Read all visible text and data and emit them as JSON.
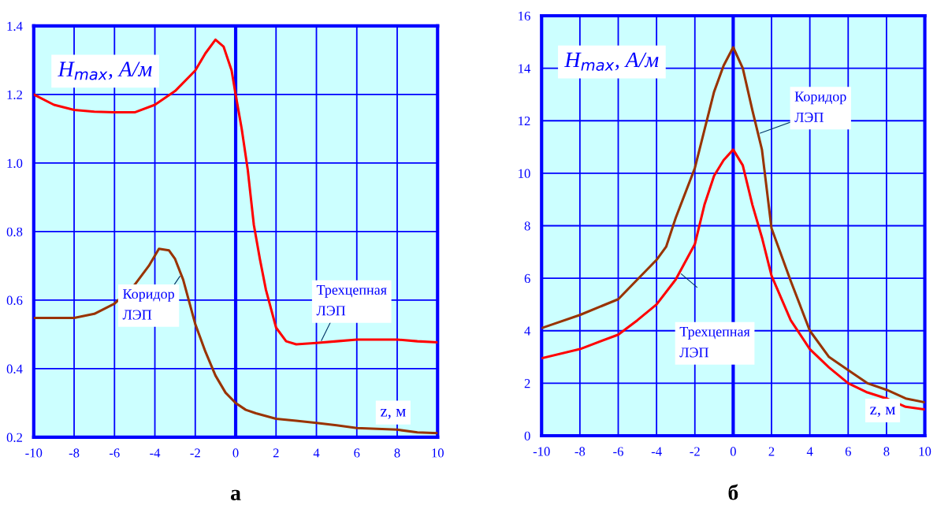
{
  "chart_data": [
    {
      "type": "line",
      "title": "а",
      "xlabel": "z, м",
      "ylabel": "H$_{max}$, А/м",
      "xlim": [
        -10,
        10
      ],
      "xticks": [
        -10,
        -8,
        -6,
        -4,
        -2,
        0,
        2,
        4,
        6,
        8,
        10
      ],
      "ylim": [
        0.2,
        1.4
      ],
      "yticks": [
        {
          "value": 0.2,
          "label": "0.2"
        },
        {
          "value": 0.4,
          "label": "0.4"
        },
        {
          "value": 0.6,
          "label": "0.6"
        },
        {
          "value": 0.8,
          "label": "0.8"
        },
        {
          "value": 1.0,
          "label": "1.0"
        },
        {
          "value": 1.2,
          "label": "1.2"
        },
        {
          "value": 1.4,
          "label": "1.4"
        }
      ],
      "grid": true,
      "legend": false,
      "marker": "none",
      "line_style": "solid",
      "ref_lines": [
        {
          "axis": "x",
          "value": 0,
          "color": "#0000ff"
        }
      ],
      "series": [
        {
          "name": "Трехцепная\nЛЭП",
          "color": "#ff0000",
          "x": [
            -10,
            -9,
            -8,
            -7,
            -6,
            -5,
            -4,
            -3,
            -2,
            -1.5,
            -1,
            -0.6,
            -0.2,
            0,
            0.3,
            0.6,
            0.9,
            1.2,
            1.5,
            2,
            2.5,
            3,
            4,
            5,
            6,
            7,
            8,
            9,
            10
          ],
          "values": [
            1.2,
            1.17,
            1.155,
            1.15,
            1.148,
            1.148,
            1.17,
            1.21,
            1.27,
            1.32,
            1.36,
            1.34,
            1.27,
            1.2,
            1.1,
            0.98,
            0.82,
            0.72,
            0.63,
            0.52,
            0.48,
            0.471,
            0.475,
            0.48,
            0.485,
            0.485,
            0.485,
            0.48,
            0.477
          ]
        },
        {
          "name": "Коридор\nЛЭП",
          "color": "#993300",
          "x": [
            -10,
            -8,
            -7,
            -6,
            -5,
            -4.3,
            -3.8,
            -3.3,
            -3,
            -2.6,
            -2,
            -1.5,
            -1,
            -0.5,
            0,
            0.5,
            1,
            2,
            3,
            4,
            5,
            6,
            8,
            9,
            10
          ],
          "values": [
            0.548,
            0.548,
            0.56,
            0.59,
            0.645,
            0.7,
            0.75,
            0.745,
            0.72,
            0.66,
            0.53,
            0.45,
            0.38,
            0.33,
            0.3,
            0.28,
            0.27,
            0.254,
            0.248,
            0.242,
            0.235,
            0.227,
            0.222,
            0.214,
            0.212
          ]
        }
      ]
    },
    {
      "type": "line",
      "title": "б",
      "xlabel": "z, м",
      "ylabel": "H$_{max}$, А/м",
      "xlim": [
        -10,
        10
      ],
      "xticks": [
        -10,
        -8,
        -6,
        -4,
        -2,
        0,
        2,
        4,
        6,
        8,
        10
      ],
      "ylim": [
        0,
        16
      ],
      "yticks": [
        0,
        2,
        4,
        6,
        8,
        10,
        12,
        14,
        16
      ],
      "grid": true,
      "legend": false,
      "marker": "none",
      "line_style": "solid",
      "ref_lines": [
        {
          "axis": "x",
          "value": 0,
          "color": "#0000ff"
        }
      ],
      "series": [
        {
          "name": "Коридор\nЛЭП",
          "color": "#993300",
          "x": [
            -10,
            -8,
            -6,
            -5,
            -4,
            -3.5,
            -3,
            -2,
            -1,
            -0.5,
            0,
            0.5,
            1,
            1.5,
            2,
            3,
            4,
            5,
            6,
            7,
            8,
            9,
            10
          ],
          "values": [
            4.1,
            4.6,
            5.2,
            5.95,
            6.7,
            7.2,
            8.3,
            10.2,
            13.1,
            14.1,
            14.8,
            14.0,
            12.4,
            10.9,
            7.9,
            5.9,
            4.0,
            3.0,
            2.5,
            2.0,
            1.75,
            1.42,
            1.27
          ]
        },
        {
          "name": "Трехцепная\nЛЭП",
          "color": "#ff0000",
          "x": [
            -10,
            -8,
            -6,
            -5,
            -4,
            -3,
            -2,
            -1.5,
            -1,
            -0.5,
            0,
            0.5,
            1,
            1.5,
            2,
            3,
            4,
            5,
            6,
            7,
            8,
            9,
            10
          ],
          "values": [
            2.95,
            3.3,
            3.85,
            4.4,
            5.0,
            5.95,
            7.3,
            8.8,
            9.9,
            10.5,
            10.9,
            10.3,
            8.8,
            7.55,
            6.1,
            4.4,
            3.3,
            2.6,
            2.0,
            1.65,
            1.42,
            1.1,
            1.0
          ]
        }
      ]
    }
  ]
}
